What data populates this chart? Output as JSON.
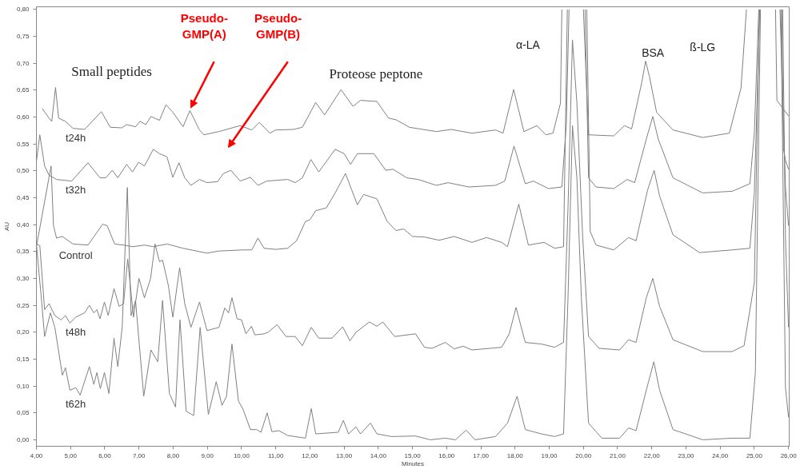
{
  "chart_data": {
    "type": "line",
    "xlabel": "Minutes",
    "ylabel": "AU",
    "annotations": [
      "Pseudo-\nGMP(A)",
      "Pseudo-\nGMP(B)",
      "Small peptides",
      "Proteose peptone",
      "α-LA",
      "BSA",
      "ß-LG"
    ],
    "xlim": [
      4,
      26.02
    ],
    "ylim": [
      -0.012,
      0.805
    ],
    "xticks": [
      {
        "value": 4,
        "label": "4,00"
      },
      {
        "value": 5,
        "label": "5,00"
      },
      {
        "value": 6,
        "label": "6,00"
      },
      {
        "value": 7,
        "label": "7,00"
      },
      {
        "value": 8,
        "label": "8,00"
      },
      {
        "value": 9,
        "label": "9,00"
      },
      {
        "value": 10,
        "label": "10,00"
      },
      {
        "value": 11,
        "label": "11,00"
      },
      {
        "value": 12,
        "label": "12,00"
      },
      {
        "value": 13,
        "label": "13,00"
      },
      {
        "value": 14,
        "label": "14,00"
      },
      {
        "value": 15,
        "label": "15,00"
      },
      {
        "value": 16,
        "label": "16,00"
      },
      {
        "value": 17,
        "label": "17,00"
      },
      {
        "value": 18,
        "label": "18,00"
      },
      {
        "value": 19,
        "label": "19,00"
      },
      {
        "value": 20,
        "label": "20,00"
      },
      {
        "value": 21,
        "label": "21,00"
      },
      {
        "value": 22,
        "label": "22,00"
      },
      {
        "value": 23,
        "label": "23,00"
      },
      {
        "value": 24,
        "label": "24,00"
      },
      {
        "value": 25,
        "label": "25,00"
      },
      {
        "value": 26,
        "label": "26,00"
      }
    ],
    "yticks": [
      {
        "value": 0.0,
        "label": "0,00"
      },
      {
        "value": 0.05,
        "label": "0,05"
      },
      {
        "value": 0.1,
        "label": "0,10"
      },
      {
        "value": 0.15,
        "label": "0,15"
      },
      {
        "value": 0.2,
        "label": "0,20"
      },
      {
        "value": 0.25,
        "label": "0,25"
      },
      {
        "value": 0.3,
        "label": "0,30"
      },
      {
        "value": 0.35,
        "label": "0,35"
      },
      {
        "value": 0.4,
        "label": "0,40"
      },
      {
        "value": 0.45,
        "label": "0,45"
      },
      {
        "value": 0.5,
        "label": "0,50"
      },
      {
        "value": 0.55,
        "label": "0,55"
      },
      {
        "value": 0.6,
        "label": "0,60"
      },
      {
        "value": 0.65,
        "label": "0,65"
      },
      {
        "value": 0.7,
        "label": "0,70"
      },
      {
        "value": 0.75,
        "label": "0,75"
      },
      {
        "value": 0.8,
        "label": "0,80"
      }
    ],
    "grid": false,
    "legend": false,
    "series": [
      {
        "name": "t24h",
        "color": "#808080",
        "x": [
          4.17,
          4.37,
          4.45,
          4.56,
          4.65,
          4.85,
          5.07,
          5.41,
          5.9,
          6.16,
          6.5,
          6.64,
          6.9,
          7.03,
          7.2,
          7.35,
          7.6,
          7.79,
          7.99,
          8.29,
          8.49,
          8.77,
          8.9,
          9.34,
          9.96,
          10.3,
          10.52,
          10.83,
          11.0,
          11.52,
          11.78,
          12.17,
          12.43,
          12.91,
          13.26,
          13.48,
          13.96,
          14.3,
          14.52,
          14.91,
          15.7,
          16.13,
          16.74,
          17.43,
          17.65,
          17.96,
          18.26,
          18.64,
          18.9,
          19.11,
          19.33,
          19.37,
          19.5,
          20.0,
          20.15,
          20.89,
          21.2,
          21.41,
          21.71,
          21.82,
          21.93,
          22.14,
          22.62,
          23.49,
          24.27,
          24.61,
          24.77,
          25.2,
          25.62,
          25.66,
          26.0
        ],
        "values": [
          0.616,
          0.598,
          0.592,
          0.655,
          0.598,
          0.592,
          0.579,
          0.577,
          0.61,
          0.581,
          0.58,
          0.586,
          0.582,
          0.592,
          0.586,
          0.601,
          0.594,
          0.623,
          0.609,
          0.582,
          0.612,
          0.576,
          0.567,
          0.573,
          0.584,
          0.576,
          0.59,
          0.57,
          0.576,
          0.577,
          0.581,
          0.627,
          0.604,
          0.651,
          0.62,
          0.631,
          0.629,
          0.598,
          0.595,
          0.581,
          0.573,
          0.577,
          0.57,
          0.576,
          0.57,
          0.651,
          0.573,
          0.584,
          0.567,
          0.57,
          0.626,
          0.8,
          null,
          0.8,
          0.567,
          0.565,
          0.584,
          0.578,
          0.665,
          0.704,
          0.676,
          0.609,
          0.576,
          0.562,
          0.57,
          0.654,
          0.8,
          null,
          0.8,
          0.631,
          0.602
        ]
      },
      {
        "name": "t32h",
        "color": "#808080",
        "x": [
          4.0,
          4.1,
          4.24,
          4.37,
          4.59,
          5.03,
          5.51,
          5.86,
          6.03,
          6.22,
          6.38,
          6.64,
          6.81,
          6.99,
          7.16,
          7.42,
          7.6,
          7.82,
          7.99,
          8.17,
          8.34,
          8.52,
          8.77,
          8.99,
          9.3,
          9.47,
          9.69,
          9.96,
          10.26,
          10.48,
          10.74,
          11.35,
          11.57,
          11.78,
          12.03,
          12.26,
          12.74,
          13.0,
          13.19,
          13.39,
          13.87,
          14.22,
          14.43,
          14.83,
          15.17,
          15.7,
          16.04,
          16.65,
          17.43,
          17.7,
          17.97,
          18.3,
          18.54,
          18.98,
          19.37,
          19.5,
          19.58,
          19.7,
          20.05,
          20.15,
          20.37,
          20.89,
          21.28,
          21.5,
          21.84,
          22.03,
          22.19,
          22.62,
          23.49,
          24.35,
          24.87,
          25.0,
          25.13,
          25.3,
          25.8,
          25.85,
          25.91,
          26.0
        ],
        "values": [
          0.517,
          0.567,
          0.509,
          0.492,
          0.484,
          0.481,
          0.515,
          0.487,
          0.487,
          0.501,
          0.487,
          0.512,
          0.498,
          0.516,
          0.509,
          0.54,
          0.532,
          0.526,
          0.488,
          0.515,
          0.487,
          0.473,
          0.484,
          0.478,
          0.48,
          0.495,
          0.501,
          0.481,
          0.488,
          0.473,
          0.481,
          0.484,
          0.478,
          0.487,
          0.521,
          0.498,
          0.54,
          0.532,
          0.512,
          0.532,
          0.532,
          0.501,
          0.503,
          0.487,
          0.484,
          0.473,
          0.478,
          0.47,
          0.473,
          0.481,
          0.546,
          0.476,
          0.481,
          0.467,
          0.47,
          0.587,
          0.8,
          null,
          0.8,
          0.487,
          0.47,
          0.467,
          0.484,
          0.478,
          0.559,
          0.601,
          0.559,
          0.487,
          0.459,
          0.462,
          0.476,
          0.57,
          0.8,
          null,
          0.8,
          0.542,
          0.52,
          0.503
        ]
      },
      {
        "name": "Control",
        "color": "#808080",
        "x": [
          4.0,
          4.43,
          4.5,
          4.59,
          4.76,
          5.07,
          5.51,
          5.72,
          5.94,
          6.07,
          6.29,
          6.55,
          6.81,
          7.16,
          7.42,
          7.82,
          8.29,
          8.99,
          9.34,
          10.04,
          10.3,
          10.48,
          10.66,
          11.0,
          11.35,
          11.61,
          11.87,
          12.0,
          12.17,
          12.48,
          12.74,
          13.04,
          13.22,
          13.39,
          13.57,
          13.96,
          14.26,
          14.52,
          14.74,
          15.0,
          15.35,
          15.78,
          16.22,
          16.74,
          17.17,
          17.61,
          17.78,
          18.11,
          18.39,
          18.85,
          19.16,
          19.42,
          19.53,
          19.7,
          20.1,
          20.2,
          20.37,
          20.89,
          21.32,
          21.54,
          21.88,
          22.07,
          22.23,
          22.62,
          23.4,
          24.35,
          24.87,
          25.0,
          25.16,
          25.4,
          25.75,
          25.91,
          26.0
        ],
        "values": [
          0.359,
          0.509,
          0.398,
          0.375,
          0.378,
          0.364,
          0.362,
          0.381,
          0.401,
          0.398,
          0.364,
          0.362,
          0.359,
          0.362,
          0.359,
          0.364,
          0.356,
          0.347,
          0.351,
          0.353,
          0.353,
          0.375,
          0.356,
          0.354,
          0.356,
          0.37,
          0.406,
          0.409,
          0.426,
          0.431,
          0.459,
          0.495,
          0.465,
          0.437,
          0.456,
          0.448,
          0.406,
          0.389,
          0.392,
          0.378,
          0.377,
          0.371,
          0.378,
          0.367,
          0.376,
          0.367,
          0.359,
          0.438,
          0.362,
          0.367,
          0.356,
          0.359,
          0.8,
          null,
          0.8,
          0.387,
          0.362,
          0.353,
          0.376,
          0.37,
          0.465,
          0.501,
          0.453,
          0.381,
          0.348,
          0.353,
          0.356,
          0.459,
          0.8,
          null,
          0.8,
          0.47,
          0.398
        ]
      },
      {
        "name": "t48h",
        "color": "#808080",
        "x": [
          4.0,
          4.1,
          4.24,
          4.37,
          4.54,
          4.72,
          4.85,
          4.98,
          5.15,
          5.41,
          5.55,
          5.68,
          5.77,
          5.86,
          5.99,
          6.1,
          6.27,
          6.42,
          6.55,
          6.67,
          6.84,
          7.0,
          7.16,
          7.34,
          7.47,
          7.6,
          7.69,
          7.86,
          7.99,
          8.19,
          8.34,
          8.52,
          8.77,
          8.99,
          9.34,
          9.51,
          9.62,
          9.72,
          9.87,
          10.0,
          10.13,
          10.29,
          10.39,
          10.66,
          10.78,
          11.04,
          11.3,
          11.57,
          11.78,
          12.04,
          12.26,
          12.65,
          12.96,
          13.17,
          13.35,
          13.74,
          13.96,
          14.13,
          14.48,
          15.09,
          15.35,
          15.57,
          15.96,
          16.22,
          16.48,
          16.74,
          17.61,
          17.83,
          18.03,
          18.3,
          18.77,
          19.16,
          19.42,
          19.55,
          19.68,
          19.81,
          19.98,
          20.15,
          20.46,
          21.06,
          21.32,
          21.54,
          21.84,
          22.03,
          22.23,
          22.62,
          23.49,
          24.35,
          24.7,
          25.0,
          25.15,
          25.5,
          25.83,
          25.91,
          25.97,
          26.0
        ],
        "values": [
          0.364,
          0.361,
          0.242,
          0.253,
          0.231,
          0.223,
          0.231,
          0.217,
          0.228,
          0.236,
          0.25,
          0.236,
          0.242,
          0.225,
          0.256,
          0.231,
          0.281,
          0.248,
          0.253,
          0.336,
          0.228,
          0.3,
          0.264,
          0.3,
          0.364,
          0.331,
          0.334,
          0.287,
          0.228,
          0.32,
          0.253,
          0.209,
          0.256,
          0.203,
          0.209,
          0.245,
          0.236,
          0.264,
          0.225,
          0.223,
          0.197,
          0.211,
          0.195,
          0.197,
          0.2,
          0.214,
          0.192,
          0.192,
          0.175,
          0.209,
          0.189,
          0.189,
          0.21,
          0.184,
          0.2,
          0.219,
          0.211,
          0.219,
          0.192,
          0.197,
          0.172,
          0.17,
          0.181,
          0.169,
          0.174,
          0.167,
          0.172,
          0.197,
          0.246,
          0.181,
          0.178,
          0.172,
          0.181,
          0.431,
          0.743,
          0.626,
          0.376,
          0.192,
          0.17,
          0.167,
          0.186,
          0.181,
          0.264,
          0.3,
          0.248,
          0.186,
          0.164,
          0.164,
          0.175,
          0.292,
          0.8,
          null,
          0.8,
          0.376,
          0.264,
          0.209
        ]
      },
      {
        "name": "t62h",
        "color": "#808080",
        "x": [
          4.0,
          4.15,
          4.24,
          4.41,
          4.54,
          4.76,
          4.85,
          4.98,
          5.15,
          5.28,
          5.55,
          5.68,
          5.77,
          5.87,
          5.99,
          6.12,
          6.27,
          6.38,
          6.51,
          6.66,
          6.77,
          6.9,
          7.14,
          7.35,
          7.55,
          7.69,
          7.89,
          8.07,
          8.2,
          8.38,
          8.6,
          8.79,
          9.03,
          9.26,
          9.43,
          9.56,
          9.72,
          9.91,
          10.05,
          10.26,
          10.44,
          10.57,
          10.75,
          10.89,
          11.09,
          11.35,
          11.87,
          12.04,
          12.17,
          12.83,
          12.98,
          13.13,
          13.35,
          13.48,
          13.77,
          13.96,
          14.39,
          15.09,
          15.52,
          15.96,
          16.26,
          16.57,
          16.83,
          17.43,
          17.78,
          18.06,
          18.3,
          18.77,
          19.16,
          19.42,
          19.55,
          19.68,
          19.81,
          19.94,
          20.15,
          20.54,
          21.06,
          21.32,
          21.54,
          21.86,
          22.06,
          22.23,
          22.62,
          23.49,
          24.35,
          24.87,
          25.03,
          25.18,
          25.5,
          25.78,
          25.91,
          26.0
        ],
        "values": [
          0.364,
          0.259,
          0.192,
          0.236,
          0.209,
          0.12,
          0.134,
          0.092,
          0.097,
          0.083,
          0.136,
          0.103,
          0.125,
          0.095,
          0.125,
          0.086,
          0.189,
          0.136,
          0.209,
          0.469,
          0.231,
          0.259,
          0.081,
          0.167,
          0.145,
          0.259,
          0.086,
          0.061,
          0.223,
          0.053,
          0.045,
          0.209,
          0.047,
          0.108,
          0.064,
          0.081,
          0.178,
          0.072,
          0.056,
          0.019,
          0.019,
          0.014,
          0.05,
          0.015,
          0.017,
          0.008,
          0.003,
          0.058,
          0.011,
          0.014,
          0.036,
          0.011,
          0.024,
          0.011,
          0.031,
          0.011,
          0.006,
          0.007,
          0.0,
          0.003,
          0.0,
          0.018,
          0.0,
          0.006,
          0.031,
          0.081,
          0.019,
          0.011,
          0.006,
          0.011,
          0.264,
          0.584,
          0.487,
          0.264,
          0.031,
          0.003,
          0.003,
          0.022,
          0.017,
          0.097,
          0.145,
          0.092,
          0.019,
          0.0,
          0.003,
          0.003,
          0.125,
          0.8,
          null,
          0.8,
          0.097,
          0.042
        ]
      }
    ]
  }
}
